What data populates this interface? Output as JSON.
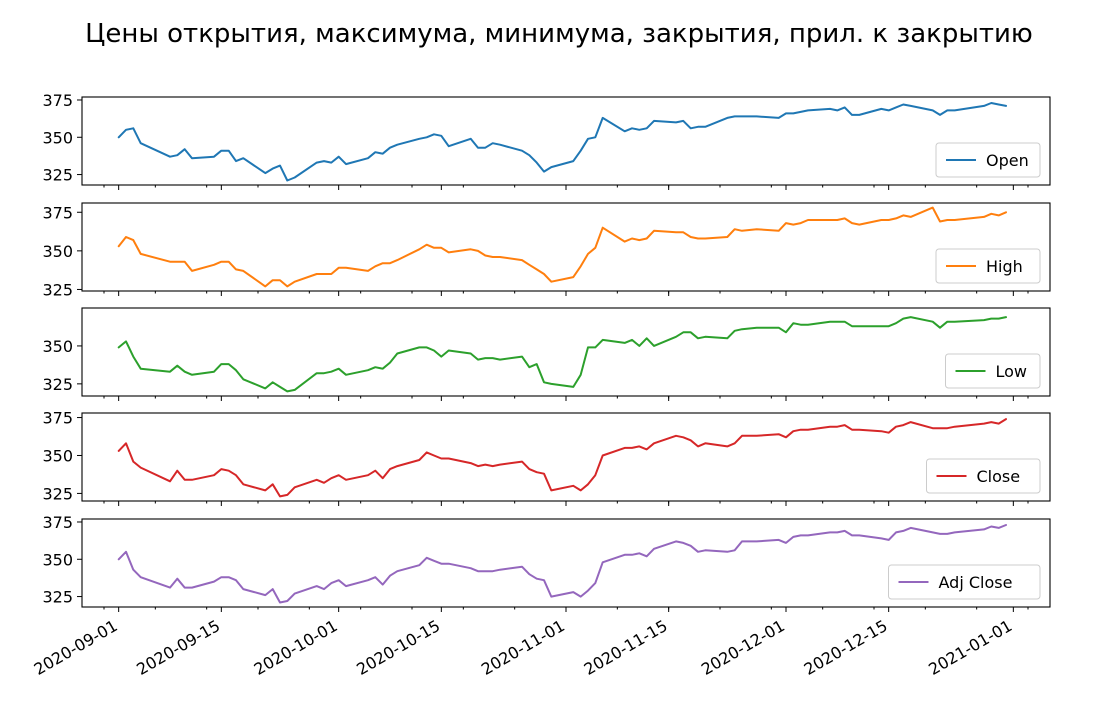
{
  "chart_data": {
    "type": "line",
    "title": "Цены открытия, максимума, минимума, закрытия, прил. к закрытию",
    "xlabel": "",
    "ylabel": "",
    "x_axis": {
      "type": "date",
      "range": [
        "2020-08-27",
        "2021-01-06"
      ],
      "tick_labels": [
        "2020-09-01",
        "2020-09-15",
        "2020-10-01",
        "2020-10-15",
        "2020-11-01",
        "2020-11-15",
        "2020-12-01",
        "2020-12-15",
        "2021-01-01"
      ]
    },
    "grid": false,
    "legend_position": "lower right",
    "dates": [
      "2020-09-01",
      "2020-09-02",
      "2020-09-03",
      "2020-09-04",
      "2020-09-08",
      "2020-09-09",
      "2020-09-10",
      "2020-09-11",
      "2020-09-14",
      "2020-09-15",
      "2020-09-16",
      "2020-09-17",
      "2020-09-18",
      "2020-09-21",
      "2020-09-22",
      "2020-09-23",
      "2020-09-24",
      "2020-09-25",
      "2020-09-28",
      "2020-09-29",
      "2020-09-30",
      "2020-10-01",
      "2020-10-02",
      "2020-10-05",
      "2020-10-06",
      "2020-10-07",
      "2020-10-08",
      "2020-10-09",
      "2020-10-12",
      "2020-10-13",
      "2020-10-14",
      "2020-10-15",
      "2020-10-16",
      "2020-10-19",
      "2020-10-20",
      "2020-10-21",
      "2020-10-22",
      "2020-10-23",
      "2020-10-26",
      "2020-10-27",
      "2020-10-28",
      "2020-10-29",
      "2020-10-30",
      "2020-11-02",
      "2020-11-03",
      "2020-11-04",
      "2020-11-05",
      "2020-11-06",
      "2020-11-09",
      "2020-11-10",
      "2020-11-11",
      "2020-11-12",
      "2020-11-13",
      "2020-11-16",
      "2020-11-17",
      "2020-11-18",
      "2020-11-19",
      "2020-11-20",
      "2020-11-23",
      "2020-11-24",
      "2020-11-25",
      "2020-11-27",
      "2020-11-30",
      "2020-12-01",
      "2020-12-02",
      "2020-12-03",
      "2020-12-04",
      "2020-12-07",
      "2020-12-08",
      "2020-12-09",
      "2020-12-10",
      "2020-12-11",
      "2020-12-14",
      "2020-12-15",
      "2020-12-16",
      "2020-12-17",
      "2020-12-18",
      "2020-12-21",
      "2020-12-22",
      "2020-12-23",
      "2020-12-24",
      "2020-12-28",
      "2020-12-29",
      "2020-12-30",
      "2020-12-31"
    ],
    "series": [
      {
        "name": "Open",
        "color": "#1f77b4",
        "ylim": [
          318,
          377
        ],
        "yticks": [
          325,
          350,
          375
        ],
        "values": [
          350,
          355,
          356,
          346,
          337,
          338,
          342,
          336,
          337,
          341,
          341,
          334,
          336,
          326,
          329,
          331,
          321,
          323,
          333,
          334,
          333,
          337,
          332,
          336,
          340,
          339,
          343,
          345,
          349,
          350,
          352,
          351,
          344,
          349,
          343,
          343,
          346,
          345,
          341,
          338,
          333,
          327,
          330,
          334,
          341,
          349,
          350,
          363,
          354,
          356,
          355,
          356,
          361,
          360,
          361,
          356,
          357,
          357,
          363,
          364,
          364,
          364,
          363,
          366,
          366,
          367,
          368,
          369,
          368,
          370,
          365,
          365,
          369,
          368,
          370,
          372,
          371,
          368,
          365,
          368,
          368,
          371,
          373,
          372,
          371
        ]
      },
      {
        "name": "High",
        "color": "#ff7f0e",
        "ylim": [
          324,
          381
        ],
        "yticks": [
          325,
          350,
          375
        ],
        "values": [
          353,
          359,
          357,
          348,
          343,
          343,
          343,
          337,
          341,
          343,
          343,
          338,
          337,
          327,
          331,
          331,
          327,
          330,
          335,
          335,
          335,
          339,
          339,
          337,
          340,
          342,
          342,
          344,
          351,
          354,
          352,
          352,
          349,
          351,
          350,
          347,
          346,
          346,
          344,
          341,
          338,
          335,
          330,
          333,
          340,
          348,
          352,
          365,
          356,
          358,
          357,
          358,
          363,
          362,
          362,
          359,
          358,
          358,
          359,
          364,
          363,
          364,
          363,
          368,
          367,
          368,
          370,
          370,
          370,
          371,
          368,
          367,
          370,
          370,
          371,
          373,
          372,
          378,
          369,
          370,
          370,
          372,
          374,
          373,
          375
        ]
      },
      {
        "name": "Low",
        "color": "#2ca02c",
        "ylim": [
          317,
          375
        ],
        "yticks": [
          325,
          350
        ],
        "values": [
          349,
          353,
          343,
          335,
          333,
          337,
          333,
          331,
          333,
          338,
          338,
          334,
          328,
          322,
          326,
          323,
          320,
          321,
          332,
          332,
          333,
          335,
          331,
          334,
          336,
          335,
          339,
          345,
          349,
          349,
          347,
          343,
          347,
          345,
          341,
          342,
          342,
          341,
          343,
          336,
          338,
          326,
          325,
          323,
          331,
          349,
          349,
          354,
          352,
          354,
          350,
          355,
          350,
          356,
          359,
          359,
          355,
          356,
          355,
          360,
          361,
          362,
          362,
          359,
          365,
          364,
          364,
          366,
          366,
          366,
          363,
          363,
          363,
          363,
          365,
          368,
          369,
          366,
          362,
          366,
          366,
          367,
          368,
          368,
          369
        ]
      },
      {
        "name": "Close",
        "color": "#d62728",
        "ylim": [
          320,
          378
        ],
        "yticks": [
          325,
          350,
          375
        ],
        "values": [
          353,
          358,
          346,
          342,
          333,
          340,
          334,
          334,
          337,
          341,
          340,
          337,
          331,
          327,
          331,
          323,
          324,
          329,
          334,
          332,
          335,
          337,
          334,
          337,
          340,
          335,
          341,
          343,
          347,
          352,
          350,
          348,
          348,
          345,
          343,
          344,
          343,
          344,
          346,
          341,
          339,
          338,
          327,
          330,
          327,
          331,
          337,
          350,
          355,
          355,
          356,
          354,
          358,
          363,
          362,
          360,
          356,
          358,
          356,
          358,
          363,
          363,
          364,
          362,
          366,
          367,
          367,
          369,
          369,
          370,
          367,
          367,
          366,
          365,
          369,
          370,
          372,
          368,
          368,
          368,
          369,
          371,
          372,
          371,
          374
        ]
      },
      {
        "name": "Adj Close",
        "color": "#9467bd",
        "ylim": [
          318,
          377
        ],
        "yticks": [
          325,
          350,
          375
        ],
        "values": [
          350,
          355,
          343,
          338,
          331,
          337,
          331,
          331,
          335,
          338,
          338,
          336,
          330,
          326,
          330,
          321,
          322,
          327,
          332,
          330,
          334,
          336,
          332,
          336,
          338,
          333,
          339,
          342,
          346,
          351,
          349,
          347,
          347,
          344,
          342,
          342,
          342,
          343,
          345,
          340,
          337,
          336,
          325,
          328,
          325,
          329,
          334,
          348,
          353,
          353,
          354,
          352,
          357,
          362,
          361,
          359,
          355,
          356,
          355,
          356,
          362,
          362,
          363,
          361,
          365,
          366,
          366,
          368,
          368,
          369,
          366,
          366,
          364,
          363,
          368,
          369,
          371,
          368,
          367,
          367,
          368,
          370,
          372,
          371,
          373
        ]
      }
    ]
  }
}
